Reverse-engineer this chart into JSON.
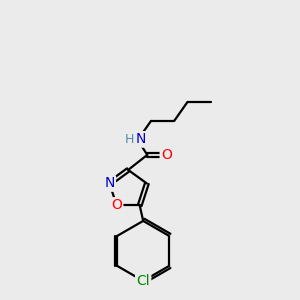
{
  "background_color": "#ebebeb",
  "atom_colors": {
    "C": "#000000",
    "N": "#0000cc",
    "O": "#ff0000",
    "Cl": "#008800",
    "H": "#5588aa"
  },
  "bond_color": "#000000",
  "bond_width": 1.6,
  "font_size_atoms": 10,
  "fig_width": 3.0,
  "fig_height": 3.0,
  "dpi": 100
}
